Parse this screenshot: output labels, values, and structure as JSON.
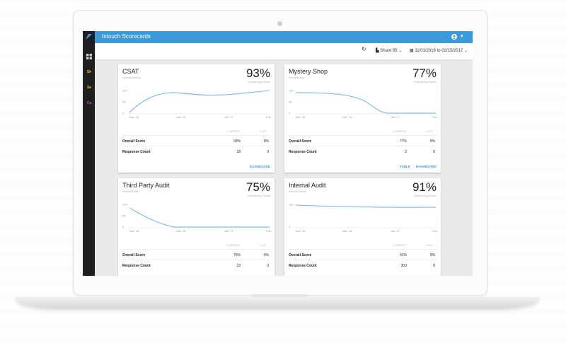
{
  "app": {
    "title": "Intouch Scorecards"
  },
  "sidebar": {
    "items": [
      {
        "icon": "dashboard-icon",
        "label": ""
      },
      {
        "icon": "yellow-badge-icon",
        "label": "Sh",
        "color": "#f0c419"
      },
      {
        "icon": "yellow-badge-icon",
        "label": "Se",
        "color": "#f0c419"
      },
      {
        "icon": "purple-badge-icon",
        "label": "Ca",
        "color": "#a259c9"
      }
    ]
  },
  "toolbar": {
    "share_label": "Share 65",
    "date_range": "11/01/2016 to 02/15/2017"
  },
  "cards": [
    {
      "title": "CSAT",
      "subtitle": "IntouchSurvey",
      "percent": "93%",
      "percent_label": "Overall Avg Score",
      "col_current": "CURRENT",
      "col_last": "LAST",
      "rows": [
        {
          "label": "Overall Score",
          "current": "93%",
          "last": "0%"
        },
        {
          "label": "Response Count",
          "current": "18",
          "last": "0"
        }
      ],
      "links": [
        "DASHBOARD"
      ],
      "chart": {
        "y_ticks": [
          "100",
          "50",
          "0"
        ],
        "x_ticks": [
          "Nov '16",
          "Dec '16",
          "Jan '17",
          "Feb '17"
        ]
      }
    },
    {
      "title": "Mystery Shop",
      "subtitle": "IntouchShop",
      "percent": "77%",
      "percent_label": "Overall Avg Score",
      "col_current": "CURRENT",
      "col_last": "LAST",
      "rows": [
        {
          "label": "Overall Score",
          "current": "77%",
          "last": "0%"
        },
        {
          "label": "Response Count",
          "current": "2",
          "last": "0"
        }
      ],
      "links": [
        "TABLE",
        "DASHBOARD"
      ],
      "chart": {
        "y_ticks": [
          "100",
          "50",
          "0"
        ],
        "x_ticks": [
          "Nov '16",
          "Dec '16",
          "Jan '17",
          "Feb '17"
        ]
      }
    },
    {
      "title": "Third Party Audit",
      "subtitle": "IntouchAudit",
      "percent": "75%",
      "percent_label": "Overall Avg Score",
      "col_current": "CURRENT",
      "col_last": "LAST",
      "rows": [
        {
          "label": "Overall Score",
          "current": "75%",
          "last": "0%"
        },
        {
          "label": "Response Count",
          "current": "23",
          "last": "0"
        }
      ],
      "links": [],
      "chart": {
        "y_ticks": [
          "100",
          "50",
          "0"
        ],
        "x_ticks": [
          "Nov '16",
          "Dec '16",
          "Jan '17",
          "Feb '17"
        ]
      }
    },
    {
      "title": "Internal Audit",
      "subtitle": "IntouchCheck",
      "percent": "91%",
      "percent_label": "Overall Avg Score",
      "col_current": "CURRENT",
      "col_last": "LAST",
      "rows": [
        {
          "label": "Overall Score",
          "current": "91%",
          "last": "0%"
        },
        {
          "label": "Response Count",
          "current": "303",
          "last": "0"
        }
      ],
      "links": [],
      "chart": {
        "y_ticks": [
          "100",
          "0"
        ],
        "x_ticks": [
          "Nov '16",
          "Dec '16",
          "Jan '17",
          "Feb '17"
        ]
      }
    }
  ],
  "colors": {
    "accent": "#3d9ad8",
    "sidebar": "#1f1f22",
    "line": "#6fb2e3"
  }
}
